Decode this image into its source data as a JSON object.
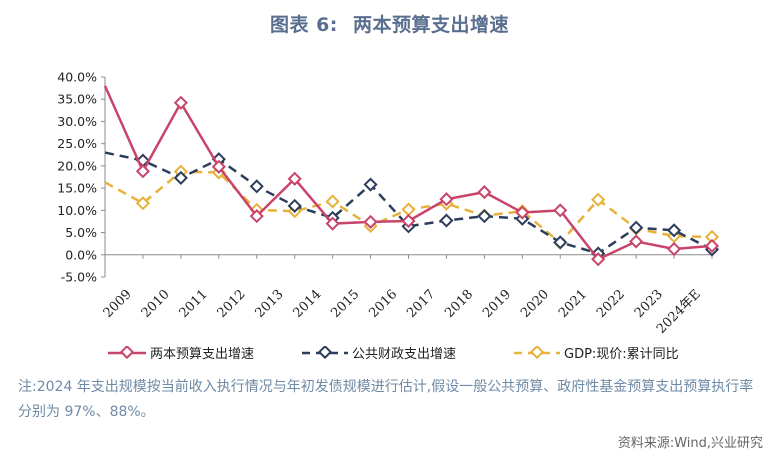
{
  "header": {
    "title_prefix": "图表 6:",
    "title_text": "两本预算支出增速"
  },
  "chart_data": {
    "type": "line",
    "categories": [
      "2009",
      "2010",
      "2011",
      "2012",
      "2013",
      "2014",
      "2015",
      "2016",
      "2017",
      "2018",
      "2019",
      "2020",
      "2021",
      "2022",
      "2023",
      "2024年E"
    ],
    "y_ticks": [
      "40.0%",
      "35.0%",
      "30.0%",
      "25.0%",
      "20.0%",
      "15.0%",
      "10.0%",
      "5.0%",
      "0.0%",
      "-5.0%"
    ],
    "ylim": [
      -5,
      40
    ],
    "y_unit": "%",
    "grid": false,
    "legend_position": "bottom",
    "series": [
      {
        "name": "两本预算支出增速",
        "color": "#c8446a",
        "style": "solid",
        "start_value": 38.0,
        "values": [
          18.8,
          34.2,
          19.8,
          8.7,
          17.1,
          7.0,
          7.4,
          7.6,
          12.5,
          14.1,
          9.5,
          10.0,
          -1.0,
          3.0,
          1.3,
          2.0
        ]
      },
      {
        "name": "公共财政支出增速",
        "color": "#2c3e5c",
        "style": "dashed",
        "start_value": 23.0,
        "values": [
          21.2,
          17.3,
          21.5,
          15.4,
          11.0,
          8.3,
          15.8,
          6.4,
          7.7,
          8.7,
          8.1,
          2.8,
          0.3,
          6.1,
          5.5,
          1.2
        ]
      },
      {
        "name": "GDP:现价:累计同比",
        "color": "#e8b23a",
        "style": "dashed",
        "start_value": 16.3,
        "values": [
          11.6,
          18.7,
          18.5,
          10.1,
          9.8,
          12.0,
          6.5,
          10.2,
          11.5,
          8.8,
          9.8,
          2.7,
          12.4,
          5.9,
          4.2,
          4.0
        ]
      }
    ]
  },
  "footer": {
    "note": "注:2024 年支出规模按当前收入执行情况与年初发债规模进行估计,假设一般公共预算、政府性基金预算支出预算执行率分别为 97%、88%。",
    "source": "资料来源:Wind,兴业研究"
  }
}
